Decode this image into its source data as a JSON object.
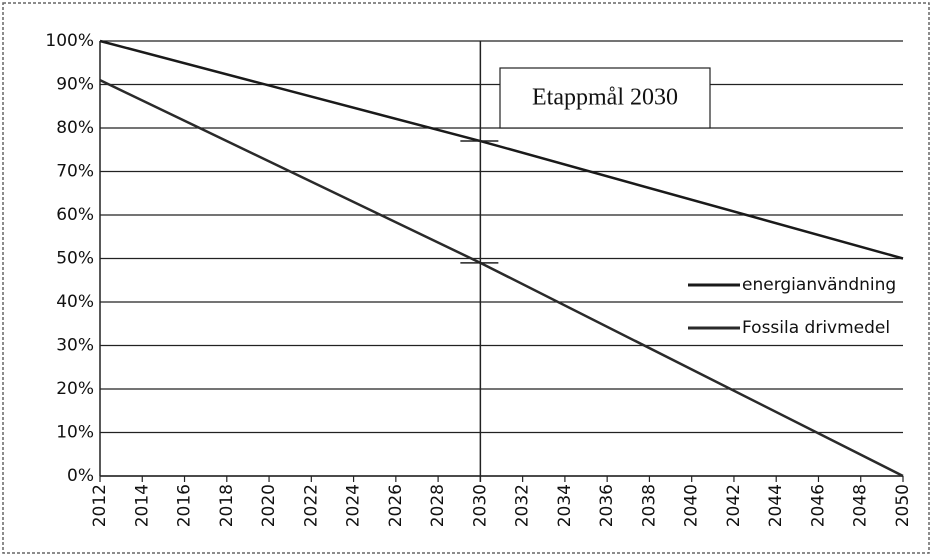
{
  "chart_data": {
    "type": "line",
    "x": [
      2012,
      2030,
      2050
    ],
    "series": [
      {
        "name": "energianvändning",
        "color": "#1a1a1a",
        "values": [
          100,
          77,
          50
        ]
      },
      {
        "name": "Fossila drivmedel",
        "color": "#2a2a2a",
        "values": [
          91,
          49,
          0
        ]
      }
    ],
    "xlim": [
      2012,
      2050
    ],
    "xticks": [
      2012,
      2014,
      2016,
      2018,
      2020,
      2022,
      2024,
      2026,
      2028,
      2030,
      2032,
      2034,
      2036,
      2038,
      2040,
      2042,
      2044,
      2046,
      2048,
      2050
    ],
    "ylim": [
      0,
      100
    ],
    "yticks": [
      {
        "value": 0,
        "label": "0%"
      },
      {
        "value": 10,
        "label": "10%"
      },
      {
        "value": 20,
        "label": "20%"
      },
      {
        "value": 30,
        "label": "30%"
      },
      {
        "value": 40,
        "label": "40%"
      },
      {
        "value": 50,
        "label": "50%"
      },
      {
        "value": 60,
        "label": "60%"
      },
      {
        "value": 70,
        "label": "70%"
      },
      {
        "value": 80,
        "label": "80%"
      },
      {
        "value": 90,
        "label": "90%"
      },
      {
        "value": 100,
        "label": "100%"
      }
    ],
    "grid": true,
    "legend": "right",
    "annotation": {
      "text": "Etappmål 2030",
      "x": 2030
    }
  }
}
